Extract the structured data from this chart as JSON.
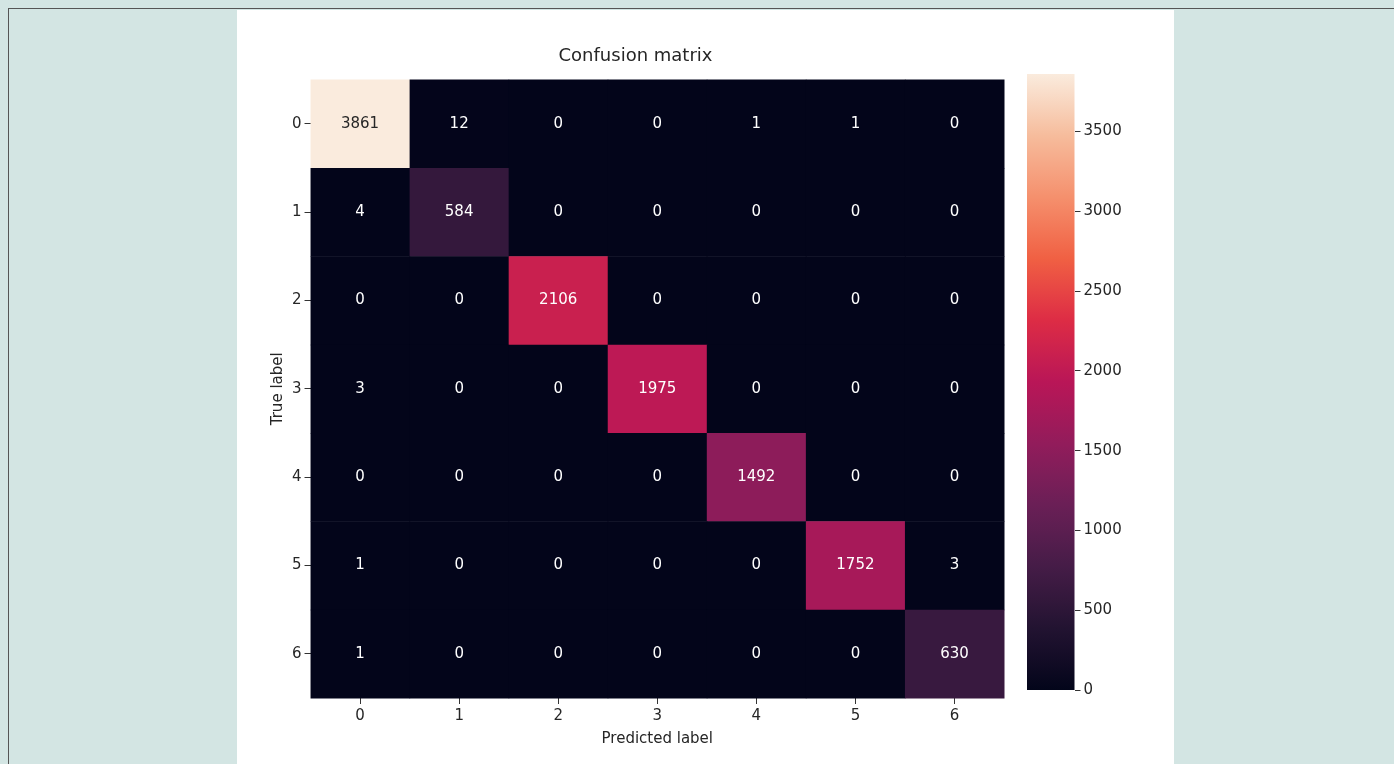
{
  "chart_data": {
    "type": "heatmap",
    "title": "Confusion matrix",
    "xlabel": "Predicted label",
    "ylabel": "True label",
    "categories": [
      "0",
      "1",
      "2",
      "3",
      "4",
      "5",
      "6"
    ],
    "y_categories": [
      "0",
      "1",
      "2",
      "3",
      "4",
      "5",
      "6"
    ],
    "cells": [
      [
        3861,
        12,
        0,
        0,
        1,
        1,
        0
      ],
      [
        4,
        584,
        0,
        0,
        0,
        0,
        0
      ],
      [
        0,
        0,
        2106,
        0,
        0,
        0,
        0
      ],
      [
        3,
        0,
        0,
        1975,
        0,
        0,
        0
      ],
      [
        0,
        0,
        0,
        0,
        1492,
        0,
        0
      ],
      [
        1,
        0,
        0,
        0,
        0,
        1752,
        3
      ],
      [
        1,
        0,
        0,
        0,
        0,
        0,
        630
      ]
    ],
    "clim": [
      0,
      3861
    ],
    "cticks": [
      0,
      500,
      1000,
      1500,
      2000,
      2500,
      3000,
      3500
    ],
    "data_labels": true
  }
}
